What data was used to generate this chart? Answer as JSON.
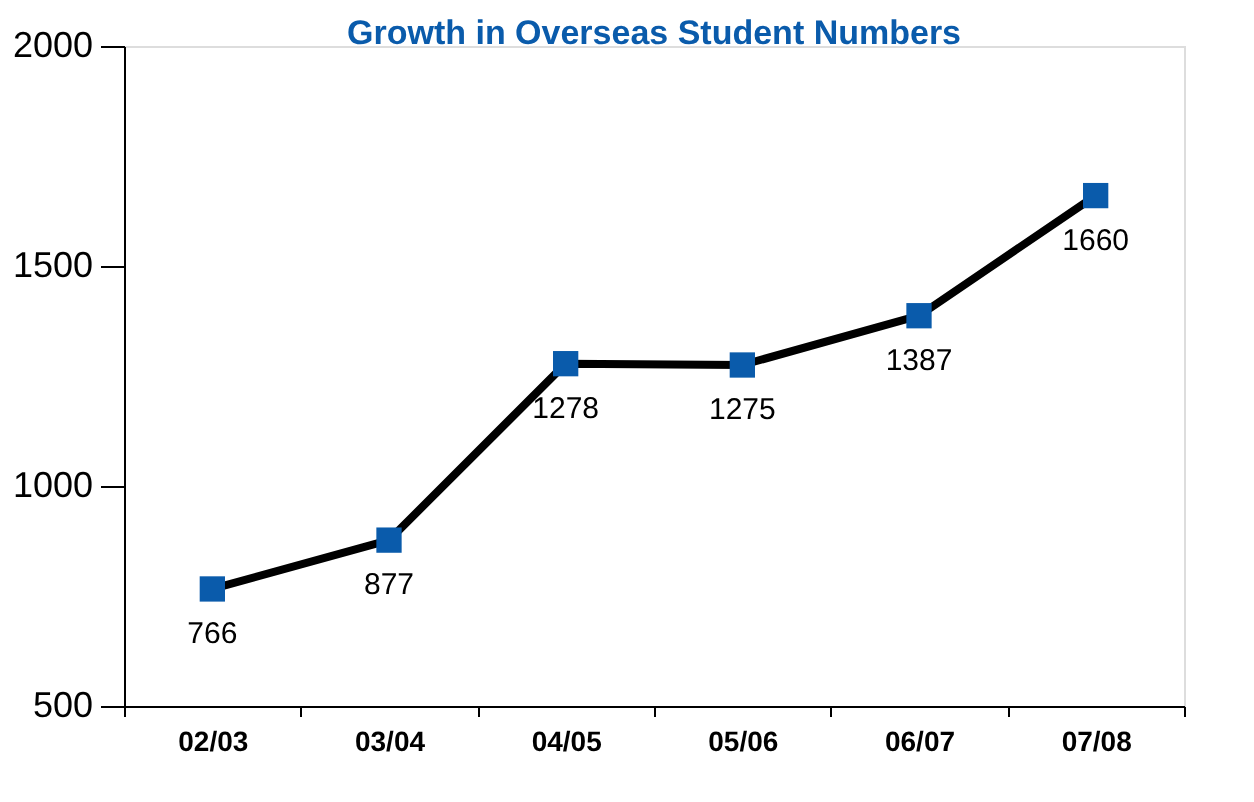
{
  "chart_data": {
    "type": "line",
    "title": "Growth in Overseas Student Numbers",
    "categories": [
      "02/03",
      "03/04",
      "04/05",
      "05/06",
      "06/07",
      "07/08"
    ],
    "series": [
      {
        "color": "#0a5bab",
        "values": [
          766,
          877,
          1278,
          1275,
          1387,
          1660
        ]
      }
    ],
    "ylim": [
      500,
      2000
    ],
    "yticks": [
      500,
      1000,
      1500,
      2000
    ],
    "grid": false,
    "marker": "square",
    "line_style": "solid",
    "data_labels": true
  }
}
